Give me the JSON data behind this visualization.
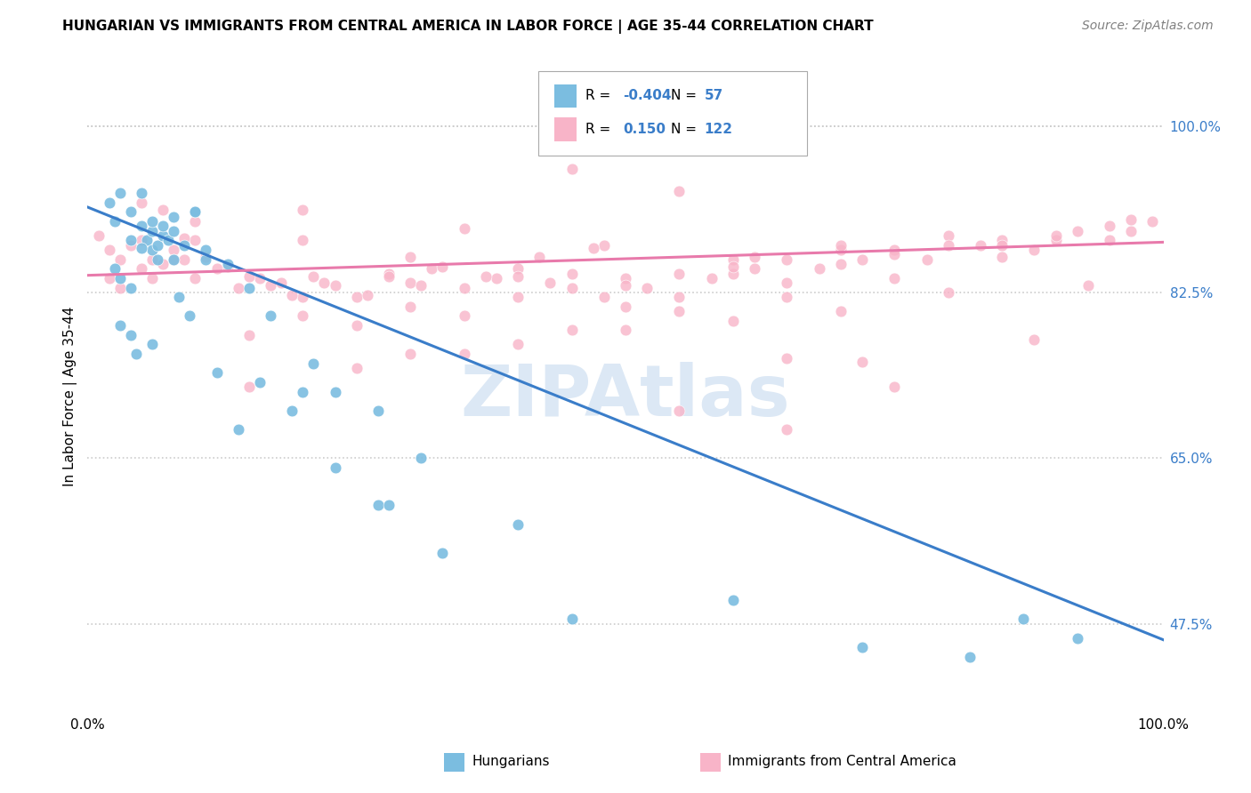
{
  "title": "HUNGARIAN VS IMMIGRANTS FROM CENTRAL AMERICA IN LABOR FORCE | AGE 35-44 CORRELATION CHART",
  "source": "Source: ZipAtlas.com",
  "ylabel": "In Labor Force | Age 35-44",
  "xlim": [
    0.0,
    1.0
  ],
  "ylim": [
    0.38,
    1.05
  ],
  "yticks": [
    0.475,
    0.65,
    0.825,
    1.0
  ],
  "ytick_labels": [
    "47.5%",
    "65.0%",
    "82.5%",
    "100.0%"
  ],
  "blue_color": "#7bbde0",
  "pink_color": "#f8b4c8",
  "blue_line_color": "#3a7dc9",
  "pink_line_color": "#e87aab",
  "legend_blue_R": "-0.404",
  "legend_blue_N": "57",
  "legend_pink_R": "0.150",
  "legend_pink_N": "122",
  "legend_label_blue": "Hungarians",
  "legend_label_pink": "Immigrants from Central America",
  "watermark": "ZIPAtlas",
  "blue_scatter_x": [
    0.02,
    0.025,
    0.03,
    0.04,
    0.05,
    0.055,
    0.06,
    0.065,
    0.07,
    0.08,
    0.025,
    0.03,
    0.04,
    0.05,
    0.065,
    0.075,
    0.085,
    0.095,
    0.11,
    0.03,
    0.04,
    0.045,
    0.06,
    0.13,
    0.15,
    0.17,
    0.21,
    0.23,
    0.27,
    0.31,
    0.12,
    0.14,
    0.16,
    0.19,
    0.23,
    0.27,
    0.33,
    0.4,
    0.45,
    0.6,
    0.72,
    0.82,
    0.87,
    0.92,
    0.04,
    0.06,
    0.08,
    0.1,
    0.2,
    0.28,
    0.08,
    0.09,
    0.1,
    0.11,
    0.05,
    0.06,
    0.07
  ],
  "blue_scatter_y": [
    0.92,
    0.9,
    0.93,
    0.91,
    0.895,
    0.88,
    0.87,
    0.875,
    0.885,
    0.905,
    0.85,
    0.84,
    0.83,
    0.872,
    0.86,
    0.88,
    0.82,
    0.8,
    0.86,
    0.79,
    0.78,
    0.76,
    0.77,
    0.855,
    0.83,
    0.8,
    0.75,
    0.72,
    0.7,
    0.65,
    0.74,
    0.68,
    0.73,
    0.7,
    0.64,
    0.6,
    0.55,
    0.58,
    0.48,
    0.5,
    0.45,
    0.44,
    0.48,
    0.46,
    0.88,
    0.89,
    0.86,
    0.91,
    0.72,
    0.6,
    0.89,
    0.875,
    0.91,
    0.87,
    0.93,
    0.9,
    0.895
  ],
  "pink_scatter_x": [
    0.01,
    0.02,
    0.03,
    0.04,
    0.05,
    0.06,
    0.07,
    0.08,
    0.09,
    0.1,
    0.02,
    0.03,
    0.05,
    0.06,
    0.08,
    0.1,
    0.12,
    0.14,
    0.16,
    0.18,
    0.2,
    0.22,
    0.25,
    0.28,
    0.3,
    0.32,
    0.35,
    0.38,
    0.4,
    0.43,
    0.45,
    0.48,
    0.5,
    0.52,
    0.55,
    0.58,
    0.6,
    0.62,
    0.65,
    0.68,
    0.7,
    0.72,
    0.75,
    0.78,
    0.8,
    0.83,
    0.85,
    0.88,
    0.9,
    0.92,
    0.95,
    0.97,
    0.99,
    0.15,
    0.2,
    0.25,
    0.3,
    0.35,
    0.4,
    0.45,
    0.5,
    0.55,
    0.6,
    0.65,
    0.7,
    0.75,
    0.8,
    0.85,
    0.9,
    0.95,
    0.3,
    0.4,
    0.5,
    0.6,
    0.7,
    0.8,
    0.25,
    0.35,
    0.45,
    0.55,
    0.65,
    0.75,
    0.85,
    0.15,
    0.55,
    0.65,
    0.1,
    0.2,
    0.3,
    0.4,
    0.5,
    0.6,
    0.7,
    0.45,
    0.55,
    0.65,
    0.75,
    0.2,
    0.35,
    0.48,
    0.62,
    0.72,
    0.88,
    0.93,
    0.97,
    0.05,
    0.07,
    0.09,
    0.11,
    0.13,
    0.15,
    0.17,
    0.19,
    0.21,
    0.23,
    0.26,
    0.28,
    0.31,
    0.33,
    0.37,
    0.42,
    0.47
  ],
  "pink_scatter_y": [
    0.885,
    0.87,
    0.86,
    0.875,
    0.88,
    0.86,
    0.855,
    0.87,
    0.86,
    0.88,
    0.84,
    0.83,
    0.85,
    0.84,
    0.86,
    0.84,
    0.85,
    0.83,
    0.84,
    0.835,
    0.82,
    0.835,
    0.82,
    0.845,
    0.835,
    0.85,
    0.83,
    0.84,
    0.85,
    0.835,
    0.845,
    0.82,
    0.84,
    0.83,
    0.845,
    0.84,
    0.86,
    0.85,
    0.86,
    0.85,
    0.87,
    0.86,
    0.87,
    0.86,
    0.885,
    0.875,
    0.88,
    0.87,
    0.88,
    0.89,
    0.88,
    0.89,
    0.9,
    0.78,
    0.8,
    0.79,
    0.81,
    0.8,
    0.82,
    0.83,
    0.81,
    0.82,
    0.845,
    0.835,
    0.855,
    0.865,
    0.875,
    0.875,
    0.885,
    0.895,
    0.76,
    0.77,
    0.785,
    0.795,
    0.805,
    0.825,
    0.745,
    0.76,
    0.785,
    0.805,
    0.82,
    0.84,
    0.862,
    0.725,
    0.7,
    0.755,
    0.9,
    0.88,
    0.862,
    0.842,
    0.832,
    0.852,
    0.875,
    0.955,
    0.932,
    0.68,
    0.725,
    0.912,
    0.892,
    0.875,
    0.862,
    0.752,
    0.775,
    0.832,
    0.902,
    0.92,
    0.912,
    0.882,
    0.862,
    0.852,
    0.842,
    0.832,
    0.822,
    0.842,
    0.832,
    0.822,
    0.842,
    0.832,
    0.852,
    0.842,
    0.862,
    0.872
  ],
  "blue_line_y_start": 0.915,
  "blue_line_y_end": 0.458,
  "pink_line_y_start": 0.843,
  "pink_line_y_end": 0.878,
  "background_color": "#ffffff",
  "grid_color": "#cccccc",
  "title_fontsize": 11,
  "source_fontsize": 10,
  "watermark_color": "#dce8f5",
  "watermark_fontsize": 58
}
